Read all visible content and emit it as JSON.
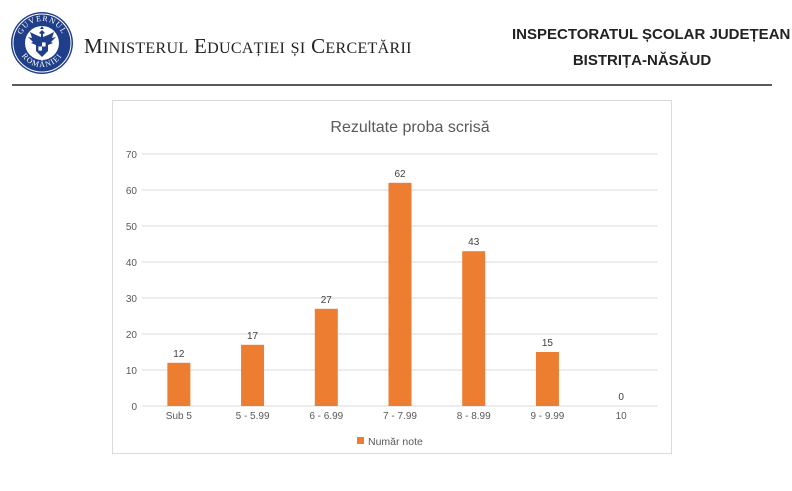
{
  "header": {
    "ministry_title": "Ministerul Educației și Cercetării",
    "inspectorate_line1": "INSPECTORATUL ȘCOLAR JUDEȚEAN",
    "inspectorate_line2": "BISTRIȚA-NĂSĂUD",
    "logo_top_text": "GUVERNUL",
    "logo_bottom_text": "ROMÂNIEI"
  },
  "colors": {
    "bar": "#ed7d31",
    "grid": "#d9d9d9",
    "axis_text": "#595959",
    "logo_blue": "#1f3f8a"
  },
  "chart_data": {
    "type": "bar",
    "title": "Rezultate  proba scrisă",
    "categories": [
      "Sub 5",
      "5 - 5.99",
      "6 - 6.99",
      "7 - 7.99",
      "8 - 8.99",
      "9 - 9.99",
      "10"
    ],
    "series": [
      {
        "name": "Număr note",
        "values": [
          12,
          17,
          27,
          62,
          43,
          15,
          0
        ]
      }
    ],
    "ylim": [
      0,
      70
    ],
    "yticks": [
      0,
      10,
      20,
      30,
      40,
      50,
      60,
      70
    ],
    "grid": true,
    "legend_position": "bottom",
    "data_labels": true
  }
}
